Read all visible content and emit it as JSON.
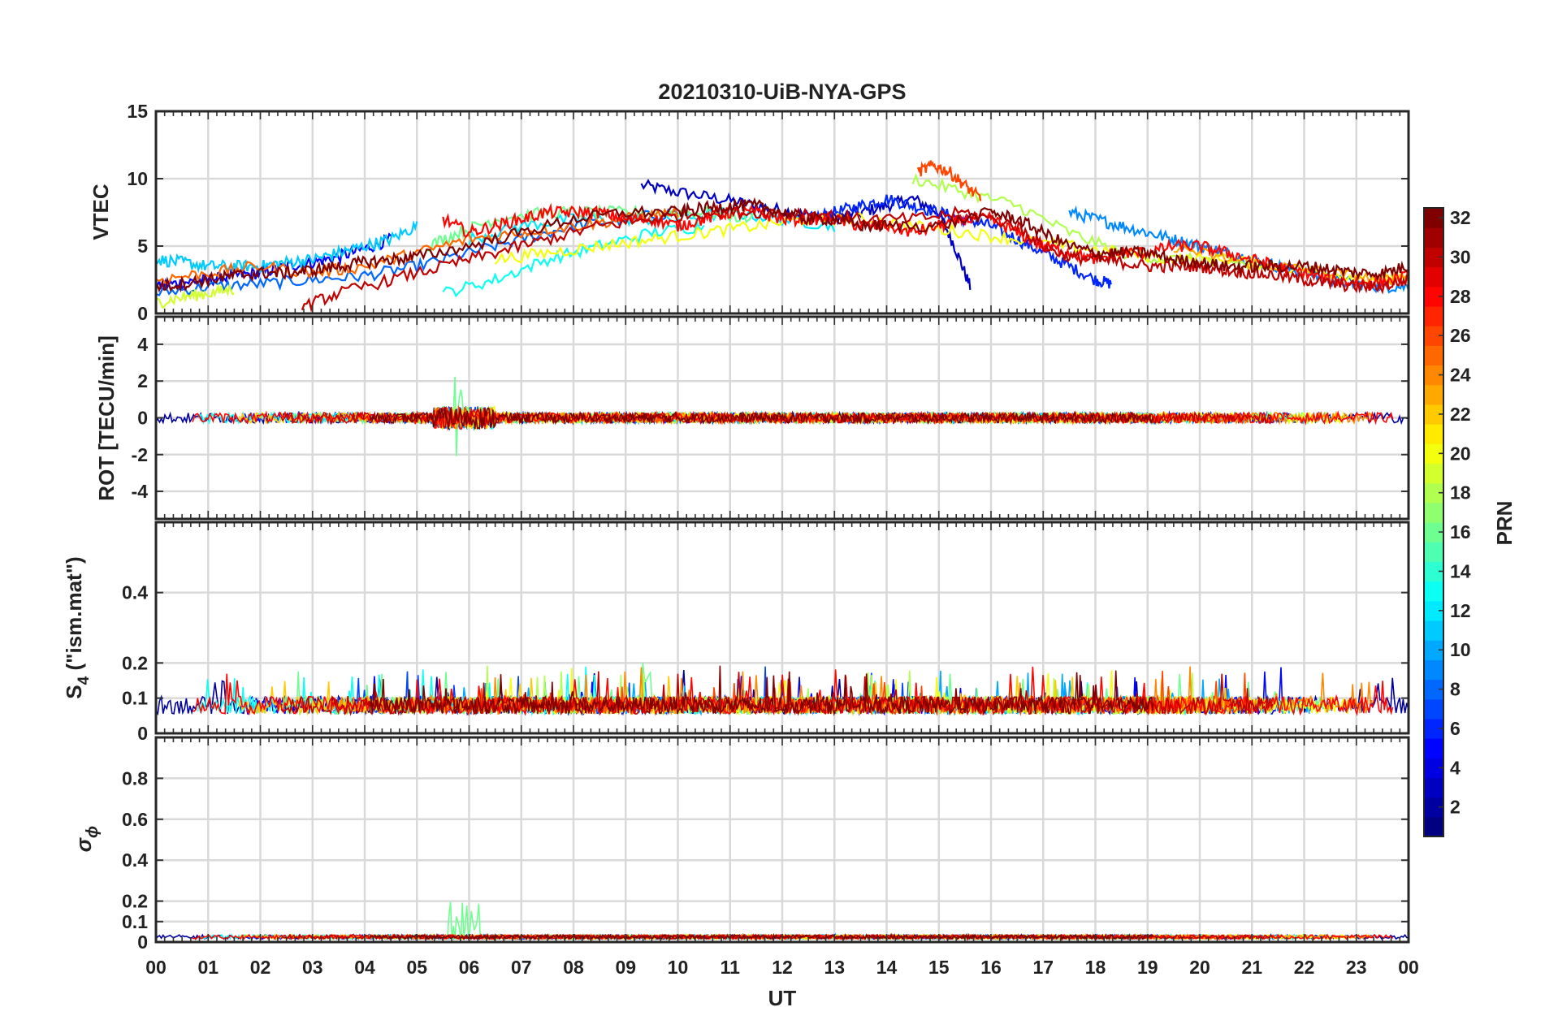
{
  "title": "20210310-UiB-NYA-GPS",
  "x_axis": {
    "label": "UT",
    "tick_labels": [
      "00",
      "01",
      "02",
      "03",
      "04",
      "05",
      "06",
      "07",
      "08",
      "09",
      "10",
      "11",
      "12",
      "13",
      "14",
      "15",
      "16",
      "17",
      "18",
      "19",
      "20",
      "21",
      "22",
      "23",
      "00"
    ]
  },
  "colorbar": {
    "label": "PRN",
    "range": [
      1,
      32
    ],
    "tick_values": [
      2,
      4,
      6,
      8,
      10,
      12,
      14,
      16,
      18,
      20,
      22,
      24,
      26,
      28,
      30,
      32
    ],
    "tick_labels": [
      "2",
      "4",
      "6",
      "8",
      "10",
      "12",
      "14",
      "16",
      "18",
      "20",
      "22",
      "24",
      "26",
      "28",
      "30",
      "32"
    ],
    "colormap": "jet"
  },
  "panels": [
    {
      "name": "vtec",
      "ylabel": "VTEC",
      "ylim": [
        0,
        15
      ],
      "ytick_values": [
        0,
        5,
        10,
        15
      ],
      "ytick_labels": [
        "0",
        "5",
        "10",
        "15"
      ]
    },
    {
      "name": "rot",
      "ylabel": "ROT [TECU/min]",
      "ylim": [
        -5.5,
        5.5
      ],
      "ytick_values": [
        -4,
        -2,
        0,
        2,
        4
      ],
      "ytick_labels": [
        "-4",
        "-2",
        "0",
        "2",
        "4"
      ]
    },
    {
      "name": "s4",
      "ylabel_main": "S",
      "ylabel_sub": "4",
      "ylabel_rest": " (\"ism.mat\")",
      "ylim": [
        0,
        0.6
      ],
      "ytick_values": [
        0,
        0.1,
        0.2,
        0.4
      ],
      "ytick_labels": [
        "0",
        "0.1",
        "0.2",
        "0.4"
      ]
    },
    {
      "name": "sigma-phi",
      "ylabel_main": "σ",
      "ylabel_sub": "ϕ",
      "ylim": [
        0,
        1
      ],
      "ytick_values": [
        0,
        0.1,
        0.2,
        0.4,
        0.6,
        0.8
      ],
      "ytick_labels": [
        "0",
        "0.1",
        "0.2",
        "0.4",
        "0.6",
        "0.8"
      ]
    }
  ],
  "chart_data": {
    "type": "line",
    "x_unit": "hours UT",
    "x_range": [
      0,
      24
    ],
    "series": [
      {
        "prn": 3,
        "panel": "vtec",
        "x": [
          9.3,
          10,
          10.8,
          11.5,
          12.2,
          12.8,
          13.5,
          14,
          14.5,
          15,
          15.3,
          15.6
        ],
        "y": [
          9.5,
          9,
          8.5,
          8,
          7.5,
          7,
          7.5,
          8,
          8.5,
          7.5,
          5,
          2
        ]
      },
      {
        "prn": 5,
        "panel": "vtec",
        "x": [
          0,
          0.5,
          1,
          1.5,
          2,
          2.5,
          3,
          3.5,
          4,
          4.5
        ],
        "y": [
          2,
          2.3,
          2.5,
          2.8,
          3,
          3.5,
          3.8,
          4.2,
          4.8,
          5.5
        ]
      },
      {
        "prn": 6,
        "panel": "vtec",
        "x": [
          12.5,
          13,
          13.5,
          14,
          14.5,
          15,
          15.5,
          16,
          16.5,
          17,
          17.5,
          18,
          18.3
        ],
        "y": [
          7,
          7.5,
          8,
          8.5,
          8,
          7.5,
          7,
          6.5,
          5.5,
          4.5,
          3.5,
          2.5,
          2.2
        ]
      },
      {
        "prn": 8,
        "panel": "vtec",
        "x": [
          0,
          1,
          2,
          3,
          4,
          5,
          6,
          7,
          8,
          9,
          10
        ],
        "y": [
          1.5,
          2,
          2.2,
          2.5,
          2.8,
          3.5,
          4.5,
          5.5,
          6.5,
          7,
          7.5
        ]
      },
      {
        "prn": 9,
        "panel": "vtec",
        "x": [
          17.5,
          18,
          18.5,
          19,
          19.5,
          20,
          20.5,
          21,
          21.5,
          22,
          22.5,
          23,
          23.5,
          24
        ],
        "y": [
          7.5,
          7,
          6.5,
          6,
          5.5,
          5,
          4.5,
          4,
          3.5,
          3,
          2.5,
          2.2,
          2,
          2
        ]
      },
      {
        "prn": 11,
        "panel": "vtec",
        "x": [
          0,
          0.5,
          1,
          1.5,
          2,
          2.5,
          3,
          3.5,
          4,
          4.5,
          5
        ],
        "y": [
          4,
          3.8,
          3.5,
          3.5,
          3.5,
          3.8,
          4,
          4.5,
          5,
          5.5,
          6.5
        ]
      },
      {
        "prn": 12,
        "panel": "vtec",
        "x": [
          6,
          7,
          8,
          9,
          10,
          11,
          12,
          13
        ],
        "y": [
          5.5,
          6.5,
          7,
          7,
          7,
          7.5,
          7,
          6.5
        ]
      },
      {
        "prn": 13,
        "panel": "vtec",
        "x": [
          5.5,
          6.5,
          7.5,
          8.5,
          9.5,
          10.5
        ],
        "y": [
          1.5,
          2.5,
          4,
          5,
          6,
          6.5
        ]
      },
      {
        "prn": 16,
        "panel": "vtec",
        "x": [
          5.2,
          5.8,
          6.5,
          7.5,
          8.5,
          9.5,
          10.5,
          11.5
        ],
        "y": [
          5,
          6,
          7,
          7.5,
          7.5,
          7.5,
          7.5,
          7
        ]
      },
      {
        "prn": 18,
        "panel": "vtec",
        "x": [
          14.5,
          15.5,
          16.5,
          17.5,
          18.5,
          19.5,
          20.5,
          21
        ],
        "y": [
          10,
          9,
          8,
          6,
          4.5,
          4,
          4,
          3.5
        ]
      },
      {
        "prn": 19,
        "panel": "vtec",
        "x": [
          0,
          0.5,
          1,
          1.5
        ],
        "y": [
          0.8,
          1.2,
          1.5,
          1.8
        ]
      },
      {
        "prn": 20,
        "panel": "vtec",
        "x": [
          6.5,
          7.5,
          8.5,
          9.5,
          10.5,
          11.5,
          12.5,
          13.5,
          14.5,
          15.5,
          16.5,
          17.5,
          18.5,
          19.5,
          20.5,
          21.5,
          22.5,
          23.5,
          24
        ],
        "y": [
          4,
          4.5,
          5,
          5.5,
          6,
          6.5,
          7,
          7,
          6.5,
          6,
          5.5,
          5,
          4.5,
          4,
          4,
          3.5,
          3,
          2.5,
          2.5
        ]
      },
      {
        "prn": 23,
        "panel": "vtec",
        "x": [
          19.5,
          20.5,
          21.5,
          22.5,
          23.5,
          24
        ],
        "y": [
          5,
          4,
          3.5,
          3,
          2.5,
          2.8
        ]
      },
      {
        "prn": 25,
        "panel": "vtec",
        "x": [
          0,
          1,
          2,
          3,
          4,
          5,
          6,
          7,
          8,
          9,
          10
        ],
        "y": [
          2.5,
          3,
          3.5,
          3,
          3.5,
          4.5,
          5.5,
          6,
          6.5,
          7,
          7.5
        ]
      },
      {
        "prn": 26,
        "panel": "vtec",
        "x": [
          14.6,
          14.9,
          15.2,
          15.5,
          15.8
        ],
        "y": [
          10.5,
          11,
          10.5,
          9.5,
          8.5
        ]
      },
      {
        "prn": 28,
        "panel": "vtec",
        "x": [
          5.5,
          6,
          6.5,
          7,
          7.5,
          8,
          8.5,
          9,
          9.5,
          10,
          10.5,
          11,
          11.5,
          12,
          12.5,
          13,
          13.5,
          14,
          14.5,
          15,
          15.5,
          16,
          16.5,
          17,
          17.5,
          18,
          18.5,
          19,
          19.5,
          20,
          20.5,
          21,
          21.5,
          22,
          22.5,
          23,
          23.5,
          24
        ],
        "y": [
          7,
          6,
          6.5,
          7,
          7.5,
          7.5,
          7.5,
          7,
          7,
          6.5,
          7,
          7.5,
          7.5,
          7,
          7,
          7,
          6.5,
          6.5,
          6,
          6.5,
          7,
          7,
          6,
          5,
          4.5,
          4,
          4.5,
          4.5,
          5,
          5,
          4.5,
          4,
          3.5,
          3,
          2.5,
          2.3,
          2.3,
          2.8
        ]
      },
      {
        "prn": 30,
        "panel": "vtec",
        "x": [
          2.8,
          3.5,
          4.5,
          5.5,
          6.5,
          7.5,
          8.5,
          9.5,
          10.5,
          11.5,
          12.5,
          13.5,
          14.5,
          15.5,
          16.5,
          17,
          17.5,
          18,
          18.5,
          19,
          19.5,
          20,
          20.5,
          21,
          21.5,
          22,
          22.5,
          23,
          23.5,
          24
        ],
        "y": [
          0.5,
          1.5,
          2.5,
          3.5,
          4.5,
          5.5,
          6.5,
          7,
          7.5,
          7.5,
          7.5,
          7,
          7,
          7.5,
          6.5,
          5,
          4.2,
          4,
          3.8,
          3.5,
          3.5,
          3.5,
          3.2,
          3,
          2.8,
          2.5,
          2.2,
          2,
          2,
          2.5
        ]
      },
      {
        "prn": 32,
        "panel": "vtec",
        "x": [
          0,
          0.5,
          1,
          1.5,
          2,
          2.5,
          3,
          3.5,
          4,
          4.5,
          5,
          6,
          7,
          8,
          9,
          10,
          10.5,
          11,
          11.5,
          12,
          12.5,
          13,
          13.5,
          14,
          15,
          16,
          16.5,
          17,
          17.5,
          18,
          18.5,
          19,
          19.5,
          20,
          20.5,
          21,
          21.5,
          22,
          22.5,
          23,
          23.5,
          24
        ],
        "y": [
          2,
          2.2,
          2.5,
          2.8,
          3,
          3,
          3.2,
          3.5,
          3.8,
          4,
          4.2,
          5,
          6,
          7,
          7.5,
          7.5,
          7.8,
          8,
          8,
          7.5,
          7,
          7,
          6.5,
          6.5,
          6.5,
          7.5,
          7,
          6,
          5,
          4.5,
          4.5,
          4.5,
          4,
          3.8,
          3.5,
          3.5,
          3.5,
          3.5,
          3.3,
          3,
          3,
          3.5
        ]
      }
    ],
    "noise_series": [
      {
        "panel": "rot",
        "description": "all PRNs fluctuate about 0 TECU/min",
        "typical_amplitude": 0.4,
        "max_abs": 2.4,
        "max_at_hour": 5.8,
        "baseline": 0
      },
      {
        "panel": "s4",
        "description": "all PRNs fluctuate between about 0.04 and 0.2",
        "baseline": 0.07,
        "max": 0.21,
        "max_at_hour": 9.4
      },
      {
        "panel": "sigma-phi",
        "description": "all PRNs mostly below 0.05",
        "baseline": 0.015,
        "max": 0.2,
        "max_at_hour": 5.8
      }
    ]
  }
}
